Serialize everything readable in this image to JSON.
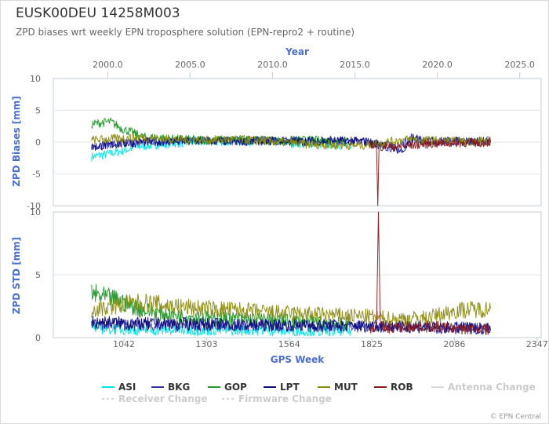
{
  "header": {
    "title": "EUSK00DEU 14258M003",
    "subtitle": "ZPD biases wrt weekly EPN troposphere solution (EPN-repro2 + routine)"
  },
  "credits": "© EPN Central",
  "colors": {
    "ASI": "#00e6e6",
    "BKG": "#3333aa",
    "GOP": "#22992a",
    "LPT": "#0b0b7a",
    "MUT": "#8c8c10",
    "ROB": "#8b1a1a",
    "axis_title": "#4a6fd0"
  },
  "chart_data": [
    {
      "type": "line",
      "ylabel": "ZPD Biases [mm]",
      "ylim": [
        -10,
        10
      ],
      "y_ticks": [
        "10",
        "5",
        "0",
        "-5",
        "-10"
      ],
      "xlim": [
        819,
        2360
      ],
      "x_top_axis": {
        "title": "Year",
        "ticks": [
          "2000.0",
          "2005.0",
          "2010.0",
          "2015.0",
          "2020.0",
          "2025.0"
        ]
      },
      "series": [
        {
          "name": "ASI",
          "x": [
            940,
            1000,
            1050,
            1100,
            1200,
            1300,
            1400,
            1500,
            1600,
            1700,
            1760
          ],
          "y": [
            -2.3,
            -1.8,
            -1.2,
            -0.6,
            -0.2,
            0.1,
            0.2,
            0.1,
            -0.2,
            -0.4,
            -0.6
          ]
        },
        {
          "name": "BKG",
          "x": [
            940,
            1000,
            1100,
            1200,
            1300,
            1400,
            1500,
            1600,
            1700,
            1800,
            1900,
            1950,
            2000,
            2100,
            2200
          ],
          "y": [
            -0.6,
            -0.3,
            0.1,
            0.2,
            0.3,
            0.2,
            0.3,
            0.2,
            0.3,
            0.1,
            -1.0,
            0.8,
            0.0,
            0.2,
            0.1
          ]
        },
        {
          "name": "GOP",
          "x": [
            940,
            960,
            1000,
            1040,
            1070,
            1100,
            1200,
            1300,
            1400,
            1500,
            1600,
            1700,
            1760
          ],
          "y": [
            2.8,
            3.0,
            3.2,
            2.0,
            1.5,
            0.8,
            0.5,
            0.3,
            0.4,
            0.2,
            0.3,
            0.2,
            0.1
          ]
        },
        {
          "name": "LPT",
          "x": [
            940,
            1000,
            1100,
            1200,
            1300,
            1400,
            1500,
            1600,
            1700,
            1800,
            1880,
            1920,
            1960,
            2000,
            2100,
            2200
          ],
          "y": [
            -0.8,
            -0.4,
            0.0,
            0.1,
            0.2,
            0.1,
            0.2,
            0.1,
            0.2,
            0.1,
            -0.5,
            -1.5,
            0.5,
            0.2,
            0.1,
            0.0
          ]
        },
        {
          "name": "MUT",
          "x": [
            940,
            1000,
            1100,
            1200,
            1300,
            1400,
            1500,
            1600,
            1700,
            1800,
            1900,
            1950,
            2000,
            2100,
            2200
          ],
          "y": [
            0.3,
            0.5,
            0.8,
            0.4,
            0.3,
            0.4,
            0.2,
            -0.3,
            -0.5,
            -0.5,
            0.2,
            0.5,
            0.3,
            0.1,
            0.2
          ]
        },
        {
          "name": "ROB",
          "x": [
            1820,
            1840,
            1844,
            1848,
            1870,
            1900,
            1950,
            2000,
            2050,
            2100,
            2150,
            2200
          ],
          "y": [
            -0.3,
            -0.6,
            -10.0,
            -0.8,
            -0.6,
            -0.8,
            -0.5,
            -0.3,
            -0.2,
            -0.1,
            -0.1,
            0.0
          ]
        }
      ]
    },
    {
      "type": "line",
      "ylabel": "ZPD STD [mm]",
      "xlabel": "GPS Week",
      "ylim": [
        0,
        10
      ],
      "y_ticks": [
        "10",
        "5",
        "0"
      ],
      "xlim": [
        819,
        2360
      ],
      "x_ticks": [
        "1042",
        "1303",
        "1564",
        "1825",
        "2086",
        "2347"
      ],
      "series": [
        {
          "name": "ASI",
          "x": [
            940,
            1000,
            1100,
            1200,
            1300,
            1400,
            1500,
            1600,
            1700,
            1760
          ],
          "y": [
            0.8,
            0.7,
            0.6,
            0.6,
            0.6,
            0.6,
            0.6,
            0.5,
            0.5,
            0.5
          ]
        },
        {
          "name": "BKG",
          "x": [
            940,
            1000,
            1100,
            1200,
            1300,
            1400,
            1500,
            1600,
            1700,
            1800,
            1900,
            2000,
            2100,
            2200
          ],
          "y": [
            1.2,
            1.1,
            1.0,
            1.0,
            1.0,
            1.0,
            1.0,
            0.9,
            0.9,
            0.9,
            0.9,
            0.8,
            0.8,
            0.7
          ]
        },
        {
          "name": "GOP",
          "x": [
            940,
            980,
            1020,
            1060,
            1100,
            1200,
            1300,
            1400,
            1500,
            1600,
            1700,
            1760
          ],
          "y": [
            3.5,
            3.2,
            3.0,
            2.6,
            2.2,
            1.8,
            1.6,
            1.5,
            1.4,
            1.3,
            1.2,
            1.1
          ]
        },
        {
          "name": "LPT",
          "x": [
            940,
            1000,
            1100,
            1200,
            1300,
            1400,
            1500,
            1600,
            1700,
            1800,
            1900,
            2000,
            2100,
            2200
          ],
          "y": [
            1.3,
            1.2,
            1.1,
            1.1,
            1.1,
            1.0,
            1.0,
            1.0,
            1.0,
            0.9,
            0.9,
            0.8,
            0.8,
            0.7
          ]
        },
        {
          "name": "MUT",
          "x": [
            940,
            1000,
            1100,
            1200,
            1300,
            1400,
            1500,
            1600,
            1700,
            1800,
            1900,
            2000,
            2100,
            2200
          ],
          "y": [
            2.2,
            2.5,
            2.8,
            2.5,
            2.3,
            2.2,
            2.0,
            1.9,
            1.8,
            1.7,
            1.5,
            1.6,
            2.2,
            2.3
          ]
        },
        {
          "name": "ROB",
          "x": [
            1820,
            1840,
            1846,
            1852,
            1870,
            1900,
            1950,
            2000,
            2050,
            2100,
            2150,
            2200
          ],
          "y": [
            0.8,
            0.9,
            10.0,
            0.9,
            0.8,
            0.8,
            0.9,
            0.9,
            0.8,
            0.7,
            0.7,
            0.6
          ]
        }
      ]
    }
  ],
  "legend": {
    "placement": "bottom",
    "items": [
      {
        "label": "ASI",
        "enabled": true
      },
      {
        "label": "BKG",
        "enabled": true
      },
      {
        "label": "GOP",
        "enabled": true
      },
      {
        "label": "LPT",
        "enabled": true
      },
      {
        "label": "MUT",
        "enabled": true
      },
      {
        "label": "ROB",
        "enabled": true
      },
      {
        "label": "Antenna Change",
        "enabled": false
      },
      {
        "label": "Receiver Change",
        "enabled": false
      },
      {
        "label": "Firmware Change",
        "enabled": false
      }
    ]
  }
}
